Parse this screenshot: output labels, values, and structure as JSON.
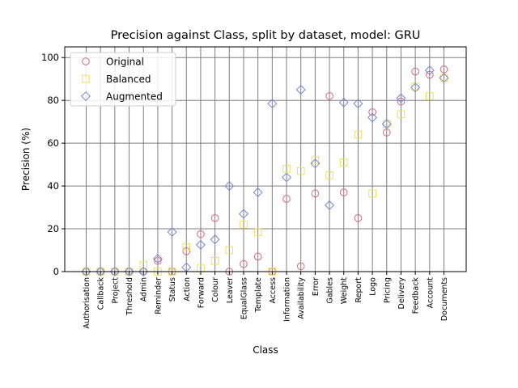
{
  "chart_data": {
    "type": "scatter",
    "title": "Precision against Class, split by dataset, model: GRU",
    "xlabel": "Class",
    "ylabel": "Precision (%)",
    "ylim": [
      0,
      105
    ],
    "yticks": [
      0,
      20,
      40,
      60,
      80,
      100
    ],
    "grid": true,
    "legend_position": "top-left",
    "categories": [
      "Authorisation",
      "Callback",
      "Project",
      "Threshold",
      "Admin",
      "Reminder",
      "Status",
      "Action",
      "Forward",
      "Colour",
      "Leaver",
      "EqualGlass",
      "Template",
      "Access",
      "Information",
      "Availability",
      "Error",
      "Gables",
      "Weight",
      "Report",
      "Logo",
      "Pricing",
      "Delivery",
      "Feedback",
      "Account",
      "Documents"
    ],
    "series": [
      {
        "name": "Original",
        "marker": "circle",
        "color": "#d9667f",
        "values": [
          0,
          0,
          0,
          0,
          0,
          5,
          0,
          9.5,
          17.5,
          25,
          0,
          3.5,
          7,
          0,
          34,
          2.5,
          36.5,
          82,
          37,
          25,
          74.5,
          65,
          79.5,
          93.5,
          92,
          94.5
        ]
      },
      {
        "name": "Balanced",
        "marker": "square",
        "color": "#f2dd5c",
        "values": [
          0,
          0,
          0,
          0,
          3,
          0,
          0,
          11.5,
          1.5,
          5,
          10,
          22,
          18.5,
          0,
          48,
          47,
          52,
          45,
          51,
          64,
          36.5,
          69,
          73.5,
          86.5,
          82,
          90.5
        ]
      },
      {
        "name": "Augmented",
        "marker": "diamond",
        "color": "#7386d5",
        "values": [
          0,
          0,
          0,
          0,
          0,
          6,
          18.5,
          2,
          12.5,
          15,
          40,
          27,
          37,
          78.5,
          44,
          85,
          50.5,
          31,
          79,
          78.5,
          72,
          69,
          81,
          86,
          94,
          90.5
        ]
      }
    ]
  }
}
